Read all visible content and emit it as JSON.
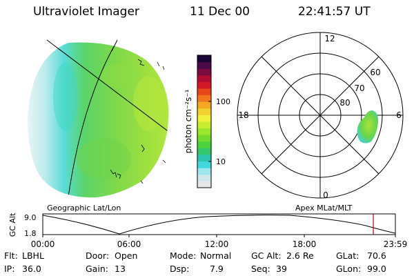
{
  "header": {
    "instrument": "Ultraviolet Imager",
    "date": "11 Dec 00",
    "time": "22:41:57 UT"
  },
  "colorbar": {
    "unit_label": "photon cm⁻²s⁻¹",
    "tick_labels": [
      "100",
      "10"
    ],
    "colors": [
      "#e6e6e6",
      "#cfe6ea",
      "#9ee6ee",
      "#3fd8dc",
      "#2ec4b4",
      "#30c86a",
      "#4cd43a",
      "#72dc2e",
      "#9ce630",
      "#c6ee2e",
      "#eef03a",
      "#f2d030",
      "#f4a820",
      "#f07818",
      "#e84818",
      "#d41828",
      "#b00c34",
      "#7a0a40",
      "#4a0848",
      "#1a0436"
    ]
  },
  "left_map": {
    "label": "Geographic Lat/Lon",
    "fill_color": "#7ed84a",
    "edge_color": "#50d8e0"
  },
  "polar_plot": {
    "label": "Apex MLat/MLT",
    "mlt_labels": [
      "12",
      "18",
      "6",
      "0"
    ],
    "lat_labels": [
      "60",
      "70",
      "80"
    ]
  },
  "altitude_plot": {
    "ylabel": "GC Alt",
    "y_ticks": [
      "9.0",
      "1.8"
    ],
    "x_ticks": [
      "00:00",
      "06:00",
      "12:00",
      "18:00",
      "23:59"
    ],
    "marker_color": "#cc0000"
  },
  "info_rows": [
    [
      {
        "key": "Flt:",
        "value": "LBHL"
      },
      {
        "key": "Door:",
        "value": "Open"
      },
      {
        "key": "Mode:",
        "value": "Normal"
      },
      {
        "key": "GC Alt:",
        "value": "2.6 Re"
      },
      {
        "key": "GLat:",
        "value": "70.6"
      }
    ],
    [
      {
        "key": "IP:",
        "value": "36.0"
      },
      {
        "key": "Gain:",
        "value": "13"
      },
      {
        "key": "Dsp:",
        "value": "7.9"
      },
      {
        "key": "Seq:",
        "value": "39"
      },
      {
        "key": "GLon:",
        "value": "99.0"
      }
    ]
  ]
}
